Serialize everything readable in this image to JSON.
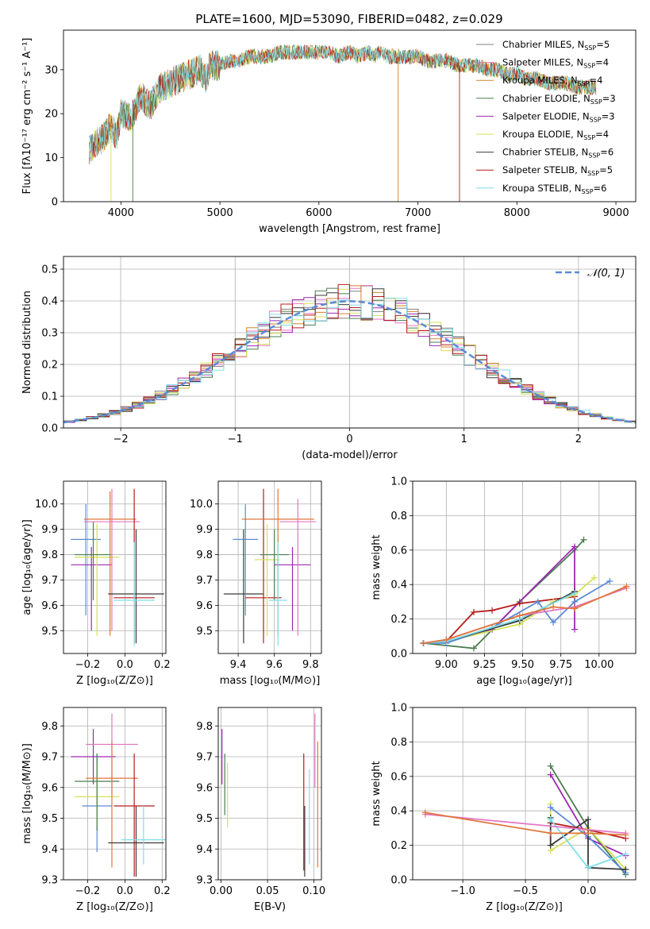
{
  "figure": {
    "title": "PLATE=1600, MJD=53090, FIBERID=0482, z=0.029"
  },
  "colors": [
    "#808080",
    "#e377c2",
    "#d2832a",
    "#4a7d4e",
    "#9c27b0",
    "#d4e157",
    "#3a3a3a",
    "#b71c1c",
    "#80deea",
    "#5b8ad6",
    "#e0763a"
  ],
  "chart_data": [
    {
      "id": "spectrum",
      "type": "line",
      "title": "PLATE=1600, MJD=53090, FIBERID=0482, z=0.029",
      "xlabel": "wavelength [Angstrom, rest frame]",
      "ylabel": "Flux [fλ10⁻¹⁷ erg cm⁻² s⁻¹ A⁻¹]",
      "xlim": [
        3420,
        9200
      ],
      "ylim": [
        0,
        39
      ],
      "xticks": [
        4000,
        5000,
        6000,
        7000,
        8000,
        9000
      ],
      "yticks": [
        0,
        10,
        20,
        30
      ],
      "legend": "right",
      "spectrum_x": [
        3680,
        3800,
        3900,
        3960,
        4000,
        4100,
        4200,
        4300,
        4400,
        4500,
        4600,
        4700,
        4800,
        4860,
        4900,
        5000,
        5100,
        5200,
        5300,
        5400,
        5500,
        5600,
        5700,
        5800,
        5900,
        6000,
        6100,
        6200,
        6300,
        6400,
        6500,
        6563,
        6600,
        6700,
        6800,
        6900,
        7000,
        7100,
        7200,
        7300,
        7400,
        7500,
        7600,
        7700,
        7800,
        7900,
        8000,
        8100,
        8200,
        8300,
        8400,
        8500,
        8600,
        8700,
        8800
      ],
      "spectrum_y": [
        12,
        14,
        17,
        15,
        20,
        19,
        24,
        22,
        26,
        27,
        28,
        29,
        30,
        28,
        31,
        31,
        32,
        32,
        33,
        33,
        33,
        34,
        34,
        34,
        34,
        34,
        34,
        33,
        34,
        33,
        34,
        33,
        34,
        33,
        33,
        33,
        33,
        32,
        32,
        32,
        31,
        31,
        31,
        30,
        30,
        29,
        29,
        28,
        28,
        27,
        27,
        27,
        26,
        26,
        26
      ],
      "series": [
        {
          "name": "Chabrier MILES, N",
          "sub": "SSP",
          "suffix": "=5"
        },
        {
          "name": "Salpeter MILES, N",
          "sub": "SSP",
          "suffix": "=4"
        },
        {
          "name": "Kroupa MILES, N",
          "sub": "SSP",
          "suffix": "=4"
        },
        {
          "name": "Chabrier ELODIE, N",
          "sub": "SSP",
          "suffix": "=3"
        },
        {
          "name": "Salpeter ELODIE, N",
          "sub": "SSP",
          "suffix": "=3"
        },
        {
          "name": "Kroupa ELODIE, N",
          "sub": "SSP",
          "suffix": "=4"
        },
        {
          "name": "Chabrier STELIB, N",
          "sub": "SSP",
          "suffix": "=6"
        },
        {
          "name": "Salpeter STELIB, N",
          "sub": "SSP",
          "suffix": "=5"
        },
        {
          "name": "Kroupa STELIB, N",
          "sub": "SSP",
          "suffix": "=6"
        }
      ]
    },
    {
      "id": "residuals",
      "type": "line",
      "xlabel": "(data-model)/error",
      "ylabel": "Normed distribution",
      "xlim": [
        -2.5,
        2.5
      ],
      "ylim": [
        0,
        0.54
      ],
      "xticks": [
        -2,
        -1,
        0,
        1,
        2
      ],
      "yticks": [
        0.0,
        0.1,
        0.2,
        0.3,
        0.4,
        0.5
      ],
      "legend": "top-right",
      "gauss_label": "𝒩(0, 1)",
      "bin_width": 0.1
    },
    {
      "id": "z_age",
      "type": "scatter",
      "xlabel": "Z [log₁₀(Z/Z⊙)]",
      "ylabel": "age  [log₁₀(age/yr)]",
      "xlim": [
        -0.33,
        0.22
      ],
      "ylim": [
        9.41,
        10.09
      ],
      "xticks": [
        -0.2,
        0.0,
        0.2
      ],
      "yticks": [
        9.5,
        9.6,
        9.7,
        9.8,
        9.9,
        10.0
      ],
      "points": [
        {
          "x": -0.21,
          "y": 9.86,
          "xerr": 0.08,
          "ylo": 9.56,
          "yhi": 10.0,
          "c": 9
        },
        {
          "x": -0.18,
          "y": 9.76,
          "xerr": 0.11,
          "ylo": 9.5,
          "yhi": 9.83,
          "c": 4
        },
        {
          "x": -0.15,
          "y": 9.79,
          "xerr": 0.12,
          "ylo": 9.48,
          "yhi": 9.92,
          "c": 5
        },
        {
          "x": -0.17,
          "y": 9.8,
          "xerr": 0.1,
          "ylo": 9.62,
          "yhi": 9.93,
          "c": 3
        },
        {
          "x": -0.08,
          "y": 9.94,
          "xerr": 0.14,
          "ylo": 9.48,
          "yhi": 10.05,
          "c": 10
        },
        {
          "x": -0.07,
          "y": 9.93,
          "xerr": 0.15,
          "ylo": 9.5,
          "yhi": 10.06,
          "c": 1
        },
        {
          "x": 0.06,
          "y": 9.645,
          "xerr": 0.15,
          "ylo": 9.45,
          "yhi": 9.9,
          "c": 6
        },
        {
          "x": 0.05,
          "y": 9.63,
          "xerr": 0.11,
          "ylo": 9.45,
          "yhi": 10.06,
          "c": 7
        },
        {
          "x": 0.05,
          "y": 9.62,
          "xerr": 0.11,
          "ylo": 9.44,
          "yhi": 9.85,
          "c": 8
        }
      ]
    },
    {
      "id": "mass_age",
      "type": "scatter",
      "xlabel": "mass [log₁₀(M/M⊙)]",
      "ylabel": "",
      "xlim": [
        9.29,
        9.86
      ],
      "ylim": [
        9.41,
        10.09
      ],
      "xticks": [
        9.4,
        9.6,
        9.8
      ],
      "yticks": [
        9.5,
        9.6,
        9.7,
        9.8,
        9.9,
        10.0
      ],
      "points": [
        {
          "x": 9.43,
          "y": 9.645,
          "xerr": 0.11,
          "ylo": 9.45,
          "yhi": 9.9,
          "c": 6
        },
        {
          "x": 9.44,
          "y": 9.86,
          "xerr": 0.07,
          "ylo": 9.56,
          "yhi": 10.0,
          "c": 9
        },
        {
          "x": 9.54,
          "y": 9.63,
          "xerr": 0.1,
          "ylo": 9.45,
          "yhi": 10.06,
          "c": 7
        },
        {
          "x": 9.56,
          "y": 9.78,
          "xerr": 0.07,
          "ylo": 9.48,
          "yhi": 9.92,
          "c": 5
        },
        {
          "x": 9.6,
          "y": 9.8,
          "xerr": 0.08,
          "ylo": 9.62,
          "yhi": 9.9,
          "c": 3
        },
        {
          "x": 9.62,
          "y": 9.94,
          "xerr": 0.2,
          "ylo": 9.48,
          "yhi": 10.06,
          "c": 10
        },
        {
          "x": 9.7,
          "y": 9.76,
          "xerr": 0.1,
          "ylo": 9.5,
          "yhi": 9.83,
          "c": 4
        },
        {
          "x": 9.73,
          "y": 9.93,
          "xerr": 0.1,
          "ylo": 9.48,
          "yhi": 10.02,
          "c": 1
        },
        {
          "x": 9.62,
          "y": 9.62,
          "xerr": 0.05,
          "ylo": 9.44,
          "yhi": 9.85,
          "c": 8
        }
      ]
    },
    {
      "id": "age_weight",
      "type": "line",
      "xlabel": "age  [log₁₀(age/yr)]",
      "ylabel": "mass weight",
      "xlim": [
        8.78,
        10.24
      ],
      "ylim": [
        0,
        1.0
      ],
      "xticks": [
        9.0,
        9.25,
        9.5,
        9.75,
        10.0
      ],
      "yticks": [
        0.0,
        0.2,
        0.4,
        0.6,
        0.8,
        1.0
      ],
      "lines": [
        {
          "c": 3,
          "x": [
            8.85,
            9.18,
            9.48,
            9.84,
            9.9
          ],
          "y": [
            0.06,
            0.03,
            0.3,
            0.6,
            0.66
          ]
        },
        {
          "c": 4,
          "x": [
            8.85,
            9.0,
            9.3,
            9.84,
            9.84
          ],
          "y": [
            0.06,
            0.07,
            0.14,
            0.62,
            0.14
          ]
        },
        {
          "c": 7,
          "x": [
            8.85,
            9.0,
            9.18,
            9.3,
            9.48,
            9.84
          ],
          "y": [
            0.06,
            0.07,
            0.24,
            0.25,
            0.29,
            0.33
          ]
        },
        {
          "c": 5,
          "x": [
            8.85,
            9.0,
            9.48,
            9.7,
            9.84,
            9.97
          ],
          "y": [
            0.06,
            0.07,
            0.17,
            0.3,
            0.34,
            0.44
          ]
        },
        {
          "c": 9,
          "x": [
            8.85,
            9.0,
            9.3,
            9.6,
            9.7,
            9.84,
            10.07
          ],
          "y": [
            0.06,
            0.06,
            0.15,
            0.3,
            0.18,
            0.3,
            0.42
          ]
        },
        {
          "c": 6,
          "x": [
            8.85,
            9.0,
            9.48,
            9.84
          ],
          "y": [
            0.06,
            0.07,
            0.19,
            0.36
          ]
        },
        {
          "c": 8,
          "x": [
            8.85,
            9.0,
            9.48,
            9.84
          ],
          "y": [
            0.06,
            0.07,
            0.2,
            0.35
          ]
        },
        {
          "c": 1,
          "x": [
            8.85,
            9.0,
            9.48,
            9.84,
            10.18
          ],
          "y": [
            0.06,
            0.08,
            0.22,
            0.27,
            0.38
          ]
        },
        {
          "c": 10,
          "x": [
            8.85,
            9.0,
            9.48,
            9.7,
            9.84,
            10.18
          ],
          "y": [
            0.06,
            0.08,
            0.22,
            0.27,
            0.26,
            0.39
          ]
        }
      ]
    },
    {
      "id": "z_mass",
      "type": "scatter",
      "xlabel": "Z [log₁₀(Z/Z⊙)]",
      "ylabel": "mass [log₁₀(M/M⊙)]",
      "xlim": [
        -0.33,
        0.22
      ],
      "ylim": [
        9.3,
        9.86
      ],
      "xticks": [
        -0.2,
        0.0,
        0.2
      ],
      "yticks": [
        9.3,
        9.4,
        9.5,
        9.6,
        9.7,
        9.8
      ],
      "points": [
        {
          "x": -0.17,
          "y": 9.7,
          "xerr": 0.12,
          "ylo": 9.61,
          "yhi": 9.79,
          "c": 4
        },
        {
          "x": -0.15,
          "y": 9.54,
          "xerr": 0.08,
          "ylo": 9.39,
          "yhi": 9.71,
          "c": 9
        },
        {
          "x": -0.15,
          "y": 9.57,
          "xerr": 0.12,
          "ylo": 9.47,
          "yhi": 9.68,
          "c": 5
        },
        {
          "x": -0.15,
          "y": 9.62,
          "xerr": 0.12,
          "ylo": 9.46,
          "yhi": 9.71,
          "c": 3
        },
        {
          "x": -0.07,
          "y": 9.74,
          "xerr": 0.14,
          "ylo": 9.58,
          "yhi": 9.84,
          "c": 1
        },
        {
          "x": -0.07,
          "y": 9.63,
          "xerr": 0.14,
          "ylo": 9.34,
          "yhi": 9.75,
          "c": 10
        },
        {
          "x": 0.05,
          "y": 9.54,
          "xerr": 0.11,
          "ylo": 9.31,
          "yhi": 9.71,
          "c": 7
        },
        {
          "x": 0.06,
          "y": 9.42,
          "xerr": 0.15,
          "ylo": 9.31,
          "yhi": 9.54,
          "c": 6
        },
        {
          "x": 0.1,
          "y": 9.43,
          "xerr": 0.12,
          "ylo": 9.35,
          "yhi": 9.54,
          "c": 8
        }
      ]
    },
    {
      "id": "ebv_mass",
      "type": "scatter",
      "xlabel": "E(B-V)",
      "ylabel": "",
      "xlim": [
        -0.003,
        0.108
      ],
      "ylim": [
        9.3,
        9.86
      ],
      "xticks": [
        0.0,
        0.05,
        0.1
      ],
      "yticks": [
        9.3,
        9.4,
        9.5,
        9.6,
        9.7,
        9.8
      ],
      "points": [
        {
          "x": 0.001,
          "y": 9.7,
          "ylo": 9.61,
          "yhi": 9.79,
          "c": 4
        },
        {
          "x": 0.004,
          "y": 9.62,
          "ylo": 9.51,
          "yhi": 9.71,
          "c": 3
        },
        {
          "x": 0.007,
          "y": 9.57,
          "ylo": 9.47,
          "yhi": 9.68,
          "c": 5
        },
        {
          "x": 0.089,
          "y": 9.54,
          "ylo": 9.33,
          "yhi": 9.71,
          "c": 7
        },
        {
          "x": 0.09,
          "y": 9.42,
          "ylo": 9.31,
          "yhi": 9.54,
          "c": 6
        },
        {
          "x": 0.095,
          "y": 9.5,
          "ylo": 9.35,
          "yhi": 9.66,
          "c": 8
        },
        {
          "x": 0.101,
          "y": 9.74,
          "ylo": 9.6,
          "yhi": 9.84,
          "c": 1
        },
        {
          "x": 0.104,
          "y": 9.55,
          "ylo": 9.34,
          "yhi": 9.75,
          "c": 10
        }
      ]
    },
    {
      "id": "z_weight",
      "type": "line",
      "xlabel": "Z [log₁₀(Z/Z⊙)]",
      "ylabel": "mass weight",
      "xlim": [
        -1.4,
        0.38
      ],
      "ylim": [
        0,
        1.0
      ],
      "xticks": [
        -1.0,
        -0.5,
        0.0
      ],
      "yticks": [
        0.0,
        0.2,
        0.4,
        0.6,
        0.8,
        1.0
      ],
      "lines": [
        {
          "c": 3,
          "x": [
            -0.3,
            0.0,
            0.3
          ],
          "y": [
            0.66,
            0.3,
            0.03
          ]
        },
        {
          "c": 4,
          "x": [
            -0.3,
            0.0,
            0.3
          ],
          "y": [
            0.61,
            0.24,
            0.14
          ]
        },
        {
          "c": 5,
          "x": [
            -0.3,
            -0.3,
            0.0,
            0.3
          ],
          "y": [
            0.44,
            0.17,
            0.3,
            0.06
          ]
        },
        {
          "c": 9,
          "x": [
            -0.3,
            0.0,
            0.3
          ],
          "y": [
            0.42,
            0.25,
            0.04
          ]
        },
        {
          "c": 7,
          "x": [
            -0.3,
            0.0,
            0.3
          ],
          "y": [
            0.33,
            0.29,
            0.24
          ]
        },
        {
          "c": 6,
          "x": [
            -0.3,
            -0.3,
            0.0,
            0.0,
            0.3
          ],
          "y": [
            0.36,
            0.2,
            0.35,
            0.07,
            0.06
          ]
        },
        {
          "c": 8,
          "x": [
            -0.3,
            0.0,
            0.3
          ],
          "y": [
            0.35,
            0.07,
            0.15
          ]
        },
        {
          "c": 1,
          "x": [
            -1.3,
            0.3
          ],
          "y": [
            0.38,
            0.27
          ]
        },
        {
          "c": 10,
          "x": [
            -1.3,
            -0.3,
            0.0,
            0.3
          ],
          "y": [
            0.39,
            0.27,
            0.27,
            0.26
          ]
        }
      ]
    }
  ]
}
